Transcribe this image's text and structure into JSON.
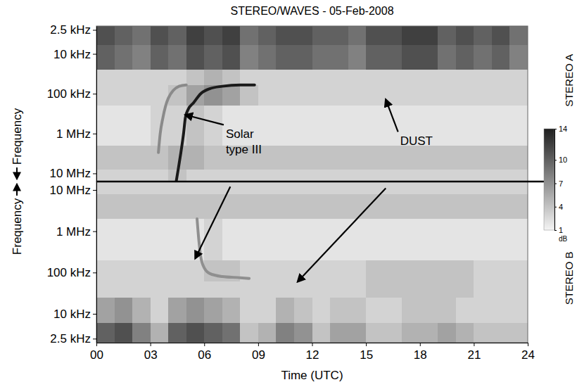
{
  "chart_data": [
    {
      "type": "heatmap",
      "title": "STEREO/WAVES - 05-Feb-2008",
      "panel_label": "STEREO A",
      "ylabel": "Frequency",
      "log": "y",
      "tick_labels": "y",
      "xlim": [
        0,
        24
      ],
      "ylim": [
        16000,
        2
      ],
      "yticks": [
        {
          "value": 2.5,
          "label": "2.5 kHz"
        },
        {
          "value": 10,
          "label": "10 kHz"
        },
        {
          "value": 100,
          "label": "100 kHz"
        },
        {
          "value": 1000,
          "label": "1 MHz"
        },
        {
          "value": 10000,
          "label": "10 MHz"
        }
      ],
      "x_edges": [
        0,
        1,
        2,
        3,
        4,
        5,
        6,
        7,
        8,
        9,
        10,
        11,
        12,
        13,
        14,
        15,
        16,
        17,
        18,
        19,
        20,
        21,
        22,
        23,
        24
      ],
      "y_edges": [
        2,
        6,
        25,
        60,
        200,
        2000,
        8000,
        16000
      ],
      "cells": [
        [
          11,
          10,
          9,
          11,
          10,
          12,
          11,
          12,
          9,
          10,
          11,
          11,
          10,
          10,
          9,
          11,
          11,
          12,
          12,
          10,
          11,
          10,
          11,
          9
        ],
        [
          10,
          9,
          8,
          10,
          9,
          11,
          10,
          11,
          8,
          9,
          10,
          10,
          9,
          9,
          8,
          10,
          10,
          11,
          11,
          9,
          10,
          9,
          10,
          8
        ],
        [
          3,
          3,
          3,
          3,
          3,
          4,
          5,
          4,
          3,
          3,
          3,
          3,
          3,
          3,
          3,
          3,
          3,
          3,
          3,
          3,
          3,
          3,
          3,
          3
        ],
        [
          3,
          3,
          3,
          3,
          4,
          6,
          7,
          6,
          4,
          3,
          3,
          3,
          3,
          3,
          3,
          3,
          3,
          3,
          3,
          3,
          3,
          3,
          3,
          3
        ],
        [
          2,
          2,
          2,
          3,
          3,
          4,
          3,
          2,
          2,
          2,
          2,
          2,
          2,
          2,
          2,
          2,
          2,
          2,
          2,
          2,
          2,
          2,
          2,
          2
        ],
        [
          4,
          4,
          4,
          4,
          5,
          5,
          4,
          4,
          4,
          4,
          4,
          4,
          4,
          4,
          4,
          4,
          4,
          4,
          4,
          4,
          4,
          4,
          4,
          4
        ],
        [
          3,
          3,
          3,
          3,
          4,
          3,
          3,
          3,
          3,
          3,
          3,
          3,
          3,
          3,
          3,
          3,
          3,
          3,
          3,
          3,
          3,
          3,
          3,
          3
        ]
      ],
      "colorbar": {
        "range": [
          1,
          14
        ],
        "ticks": [
          14,
          10,
          7,
          4,
          1
        ],
        "label": "dB"
      },
      "series": [
        {
          "x": [
            4.45,
            4.55,
            4.7,
            4.85,
            4.95,
            5.1,
            5.4,
            5.8,
            6.3,
            7.0,
            8.0,
            8.8
          ],
          "values": [
            15000,
            8000,
            3000,
            1000,
            400,
            250,
            170,
            100,
            75,
            65,
            60,
            60
          ],
          "color": "#1a1a1a"
        },
        {
          "x": [
            3.45,
            3.55,
            3.7,
            4.0,
            4.6,
            5.0
          ],
          "values": [
            3000,
            1000,
            400,
            130,
            65,
            60
          ],
          "color": "#8a8a8a"
        }
      ],
      "annotations": [
        {
          "text": "Solar type III",
          "x": 7.2,
          "y": 1000,
          "targets": [
            [
              4.95,
              340
            ]
          ]
        },
        {
          "text": "DUST",
          "x": 16.9,
          "y": 1500,
          "targets": [
            [
              16.1,
              140
            ]
          ]
        }
      ]
    },
    {
      "type": "heatmap",
      "panel_label": "STEREO B",
      "ylabel": "Frequency",
      "xlabel": "Time (UTC)",
      "log": "y",
      "xlim": [
        0,
        24
      ],
      "ylim": [
        2,
        16000
      ],
      "xticks": [
        {
          "value": 0,
          "label": "00"
        },
        {
          "value": 3,
          "label": "03"
        },
        {
          "value": 6,
          "label": "06"
        },
        {
          "value": 9,
          "label": "09"
        },
        12,
        15,
        18,
        21,
        24
      ],
      "yticks": [
        {
          "value": 2.5,
          "label": "2.5 kHz"
        },
        {
          "value": 10,
          "label": "10 kHz"
        },
        {
          "value": 100,
          "label": "100 kHz"
        },
        {
          "value": 1000,
          "label": "1 MHz"
        },
        {
          "value": 10000,
          "label": "10 MHz"
        }
      ],
      "x_edges": [
        0,
        1,
        2,
        3,
        4,
        5,
        6,
        7,
        8,
        9,
        10,
        11,
        12,
        13,
        14,
        15,
        16,
        17,
        18,
        19,
        20,
        21,
        22,
        23,
        24
      ],
      "y_edges": [
        2,
        6,
        25,
        60,
        200,
        2000,
        8000,
        16000
      ],
      "cells": [
        [
          10,
          11,
          8,
          5,
          10,
          11,
          10,
          9,
          4,
          5,
          8,
          7,
          4,
          6,
          6,
          4,
          4,
          5,
          5,
          6,
          5,
          4,
          4,
          4
        ],
        [
          6,
          7,
          5,
          3,
          6,
          7,
          6,
          5,
          3,
          3,
          5,
          4,
          3,
          4,
          4,
          3,
          3,
          4,
          4,
          4,
          3,
          3,
          3,
          3
        ],
        [
          3,
          3,
          3,
          3,
          3,
          3,
          3,
          3,
          3,
          3,
          3,
          3,
          3,
          3,
          3,
          4,
          4,
          4,
          4,
          4,
          4,
          3,
          3,
          3
        ],
        [
          3,
          3,
          3,
          3,
          3,
          3,
          4,
          4,
          3,
          3,
          3,
          3,
          3,
          3,
          3,
          4,
          4,
          4,
          4,
          4,
          4,
          3,
          3,
          3
        ],
        [
          2,
          2,
          2,
          2,
          2,
          2,
          3,
          2,
          2,
          2,
          2,
          2,
          2,
          2,
          2,
          2,
          2,
          2,
          2,
          2,
          2,
          2,
          2,
          2
        ],
        [
          4,
          4,
          4,
          4,
          4,
          4,
          4,
          4,
          4,
          4,
          4,
          4,
          4,
          4,
          4,
          4,
          4,
          4,
          4,
          4,
          4,
          4,
          4,
          4
        ],
        [
          3,
          3,
          3,
          3,
          3,
          3,
          3,
          3,
          3,
          3,
          3,
          3,
          3,
          3,
          3,
          3,
          3,
          3,
          3,
          3,
          3,
          3,
          3,
          3
        ]
      ],
      "series": [
        {
          "x": [
            5.6,
            5.7,
            5.8,
            6.0,
            6.3,
            7.0,
            8.0,
            8.5
          ],
          "values": [
            2000,
            600,
            250,
            130,
            95,
            80,
            75,
            72
          ],
          "color": "#8f8f8f"
        }
      ],
      "arrows": [
        {
          "from": [
            7.45,
            12000
          ],
          "to": [
            5.5,
            220
          ]
        },
        {
          "from": [
            16.1,
            11000
          ],
          "to": [
            11.2,
            60
          ]
        }
      ]
    }
  ]
}
